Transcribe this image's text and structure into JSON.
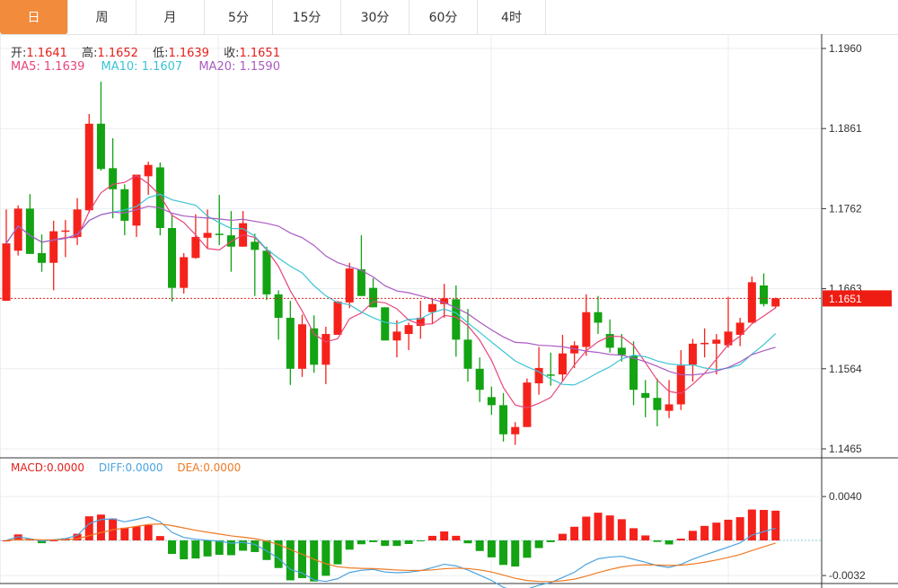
{
  "tabs": [
    {
      "label": "日",
      "active": true
    },
    {
      "label": "周"
    },
    {
      "label": "月"
    },
    {
      "label": "5分"
    },
    {
      "label": "15分"
    },
    {
      "label": "30分"
    },
    {
      "label": "60分"
    },
    {
      "label": "4时"
    }
  ],
  "ohlc_legend": {
    "open_label": "开:",
    "open": "1.1641",
    "high_label": "高:",
    "high": "1.1652",
    "low_label": "低:",
    "low": "1.1639",
    "close_label": "收:",
    "close": "1.1651"
  },
  "ma_legend": {
    "ma5": "MA5: 1.1639",
    "ma10": "MA10: 1.1607",
    "ma20": "MA20: 1.1590"
  },
  "macd_legend": {
    "macd": "MACD:0.0000",
    "diff": "DIFF:0.0000",
    "dea": "DEA:0.0000"
  },
  "current_price": "1.1651",
  "colors": {
    "up": "#f5221b",
    "down": "#13a313",
    "ma5": "#e8457a",
    "ma10": "#3cc3d6",
    "ma20": "#a95bc2",
    "diff": "#4ba3e0",
    "dea": "#f07a22",
    "tab_active": "#f28b3c"
  },
  "chart_data": [
    {
      "type": "candlestick",
      "price_ticks": [
        "1.1960",
        "1.1861",
        "1.1762",
        "1.1663",
        "1.1564",
        "1.1465"
      ],
      "ylim": [
        1.1465,
        1.196
      ],
      "grid": true,
      "ohlc": [
        [
          1.1648,
          1.1761,
          1.1648,
          1.1719
        ],
        [
          1.171,
          1.1766,
          1.1704,
          1.1762
        ],
        [
          1.1762,
          1.178,
          1.1706,
          1.1706
        ],
        [
          1.1707,
          1.173,
          1.1684,
          1.1695
        ],
        [
          1.1695,
          1.1747,
          1.1661,
          1.1734
        ],
        [
          1.1734,
          1.1748,
          1.1702,
          1.1735
        ],
        [
          1.1727,
          1.1775,
          1.1717,
          1.1761
        ],
        [
          1.176,
          1.1879,
          1.1757,
          1.1867
        ],
        [
          1.1867,
          1.1919,
          1.1809,
          1.1811
        ],
        [
          1.1812,
          1.1849,
          1.175,
          1.1786
        ],
        [
          1.1786,
          1.1792,
          1.1729,
          1.1747
        ],
        [
          1.1741,
          1.1804,
          1.1727,
          1.1804
        ],
        [
          1.1802,
          1.182,
          1.1779,
          1.1816
        ],
        [
          1.1813,
          1.1819,
          1.1729,
          1.1738
        ],
        [
          1.1738,
          1.1754,
          1.1647,
          1.1664
        ],
        [
          1.1664,
          1.1707,
          1.1657,
          1.1702
        ],
        [
          1.1701,
          1.1755,
          1.17,
          1.1727
        ],
        [
          1.1726,
          1.1761,
          1.1712,
          1.1732
        ],
        [
          1.1731,
          1.1779,
          1.1717,
          1.173
        ],
        [
          1.1729,
          1.1759,
          1.1684,
          1.1715
        ],
        [
          1.1715,
          1.1759,
          1.1715,
          1.1744
        ],
        [
          1.1721,
          1.1731,
          1.1654,
          1.1711
        ],
        [
          1.171,
          1.1715,
          1.1649,
          1.1656
        ],
        [
          1.1656,
          1.1661,
          1.16,
          1.1627
        ],
        [
          1.1627,
          1.1648,
          1.1544,
          1.1564
        ],
        [
          1.1564,
          1.1631,
          1.1554,
          1.1619
        ],
        [
          1.1614,
          1.163,
          1.1559,
          1.1569
        ],
        [
          1.1569,
          1.1616,
          1.1545,
          1.1607
        ],
        [
          1.1606,
          1.1648,
          1.1606,
          1.1647
        ],
        [
          1.1646,
          1.1695,
          1.1639,
          1.1688
        ],
        [
          1.1687,
          1.1729,
          1.1654,
          1.1654
        ],
        [
          1.1664,
          1.1676,
          1.164,
          1.164
        ],
        [
          1.164,
          1.164,
          1.1599,
          1.1599
        ],
        [
          1.1599,
          1.1624,
          1.1578,
          1.161
        ],
        [
          1.1607,
          1.1621,
          1.1587,
          1.1618
        ],
        [
          1.1617,
          1.1648,
          1.1601,
          1.1627
        ],
        [
          1.1634,
          1.1651,
          1.162,
          1.1644
        ],
        [
          1.1644,
          1.1669,
          1.1627,
          1.1651
        ],
        [
          1.165,
          1.1667,
          1.1579,
          1.16
        ],
        [
          1.16,
          1.1638,
          1.1548,
          1.1564
        ],
        [
          1.1564,
          1.1578,
          1.1523,
          1.1538
        ],
        [
          1.1529,
          1.1542,
          1.1507,
          1.1519
        ],
        [
          1.1519,
          1.1534,
          1.1474,
          1.1483
        ],
        [
          1.1483,
          1.1498,
          1.147,
          1.1492
        ],
        [
          1.1492,
          1.1552,
          1.1492,
          1.1547
        ],
        [
          1.1546,
          1.1591,
          1.1532,
          1.1565
        ],
        [
          1.1557,
          1.1584,
          1.1543,
          1.1556
        ],
        [
          1.1557,
          1.1606,
          1.1548,
          1.1583
        ],
        [
          1.1583,
          1.1598,
          1.1565,
          1.1593
        ],
        [
          1.1591,
          1.1656,
          1.158,
          1.1634
        ],
        [
          1.1634,
          1.1654,
          1.1607,
          1.1621
        ],
        [
          1.1607,
          1.1625,
          1.1584,
          1.159
        ],
        [
          1.159,
          1.1607,
          1.1573,
          1.1581
        ],
        [
          1.158,
          1.1598,
          1.1519,
          1.1538
        ],
        [
          1.1534,
          1.155,
          1.1504,
          1.1528
        ],
        [
          1.1528,
          1.1552,
          1.1493,
          1.1513
        ],
        [
          1.1512,
          1.155,
          1.1503,
          1.152
        ],
        [
          1.152,
          1.1587,
          1.1513,
          1.1568
        ],
        [
          1.1569,
          1.1601,
          1.1548,
          1.1595
        ],
        [
          1.1595,
          1.1614,
          1.1578,
          1.1596
        ],
        [
          1.1595,
          1.1607,
          1.1557,
          1.16
        ],
        [
          1.1593,
          1.1653,
          1.159,
          1.161
        ],
        [
          1.1606,
          1.1627,
          1.1592,
          1.1621
        ],
        [
          1.1621,
          1.1678,
          1.1621,
          1.1671
        ],
        [
          1.1667,
          1.1682,
          1.1641,
          1.1644
        ],
        [
          1.1641,
          1.1652,
          1.1639,
          1.1651
        ]
      ],
      "moving_averages": [
        "MA5",
        "MA10",
        "MA20"
      ]
    },
    {
      "type": "bar+line",
      "indicator": "MACD",
      "ticks": [
        "0.0040",
        "-0.0032"
      ],
      "ylim": [
        -0.0032,
        0.004
      ]
    }
  ]
}
